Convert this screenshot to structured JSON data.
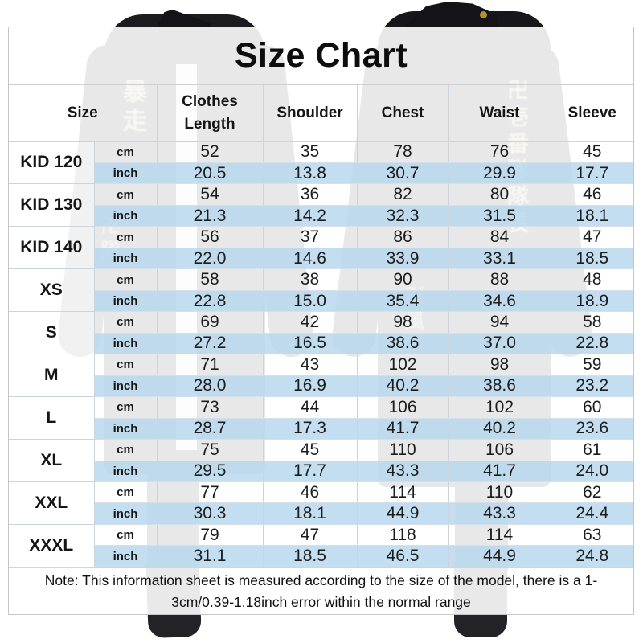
{
  "chart_data": {
    "type": "table",
    "title": "Size Chart",
    "header": {
      "size_label": "Size",
      "measures": [
        "Clothes Length",
        "Shoulder",
        "Chest",
        "Waist",
        "Sleeve"
      ]
    },
    "unit_row_labels": [
      "cm",
      "inch"
    ],
    "rows": [
      {
        "size": "KID 120",
        "cm": [
          "52",
          "35",
          "78",
          "76",
          "45"
        ],
        "inch": [
          "20.5",
          "13.8",
          "30.7",
          "29.9",
          "17.7"
        ]
      },
      {
        "size": "KID 130",
        "cm": [
          "54",
          "36",
          "82",
          "80",
          "46"
        ],
        "inch": [
          "21.3",
          "14.2",
          "32.3",
          "31.5",
          "18.1"
        ]
      },
      {
        "size": "KID 140",
        "cm": [
          "56",
          "37",
          "86",
          "84",
          "47"
        ],
        "inch": [
          "22.0",
          "14.6",
          "33.9",
          "33.1",
          "18.5"
        ]
      },
      {
        "size": "XS",
        "cm": [
          "58",
          "38",
          "90",
          "88",
          "48"
        ],
        "inch": [
          "22.8",
          "15.0",
          "35.4",
          "34.6",
          "18.9"
        ]
      },
      {
        "size": "S",
        "cm": [
          "69",
          "42",
          "98",
          "94",
          "58"
        ],
        "inch": [
          "27.2",
          "16.5",
          "38.6",
          "37.0",
          "22.8"
        ]
      },
      {
        "size": "M",
        "cm": [
          "71",
          "43",
          "102",
          "98",
          "59"
        ],
        "inch": [
          "28.0",
          "16.9",
          "40.2",
          "38.6",
          "23.2"
        ]
      },
      {
        "size": "L",
        "cm": [
          "73",
          "44",
          "106",
          "102",
          "60"
        ],
        "inch": [
          "28.7",
          "17.3",
          "41.7",
          "40.2",
          "23.6"
        ]
      },
      {
        "size": "XL",
        "cm": [
          "75",
          "45",
          "110",
          "106",
          "61"
        ],
        "inch": [
          "29.5",
          "17.7",
          "43.3",
          "41.7",
          "24.0"
        ]
      },
      {
        "size": "XXL",
        "cm": [
          "77",
          "46",
          "114",
          "110",
          "62"
        ],
        "inch": [
          "30.3",
          "18.1",
          "44.9",
          "43.3",
          "24.4"
        ]
      },
      {
        "size": "XXXL",
        "cm": [
          "79",
          "47",
          "118",
          "114",
          "63"
        ],
        "inch": [
          "31.1",
          "18.5",
          "46.5",
          "44.9",
          "24.8"
        ]
      }
    ],
    "note": "Note: This information sheet is measured according to the size of the model, there is a 1-3cm/0.39-1.18inch error within the normal range",
    "layout_hints": {
      "unit_rows_per_size": 2,
      "inch_rows_highlighted": true
    }
  },
  "background": {
    "left_sleeve_text": "暴走",
    "left_lower_text": "卍隊",
    "right_sleeve_text": "卍壱番隊隊長",
    "right_back_text": "卍風"
  },
  "colors": {
    "inch_row_bg": "#cfe3f2",
    "table_border": "#c9d4dd",
    "panel_border": "#c5c5c5",
    "text": "#151515",
    "jacket_silhouette": "#1b1b20",
    "kanji_gold": "#efe5aa",
    "button_gold": "#b8912f"
  }
}
